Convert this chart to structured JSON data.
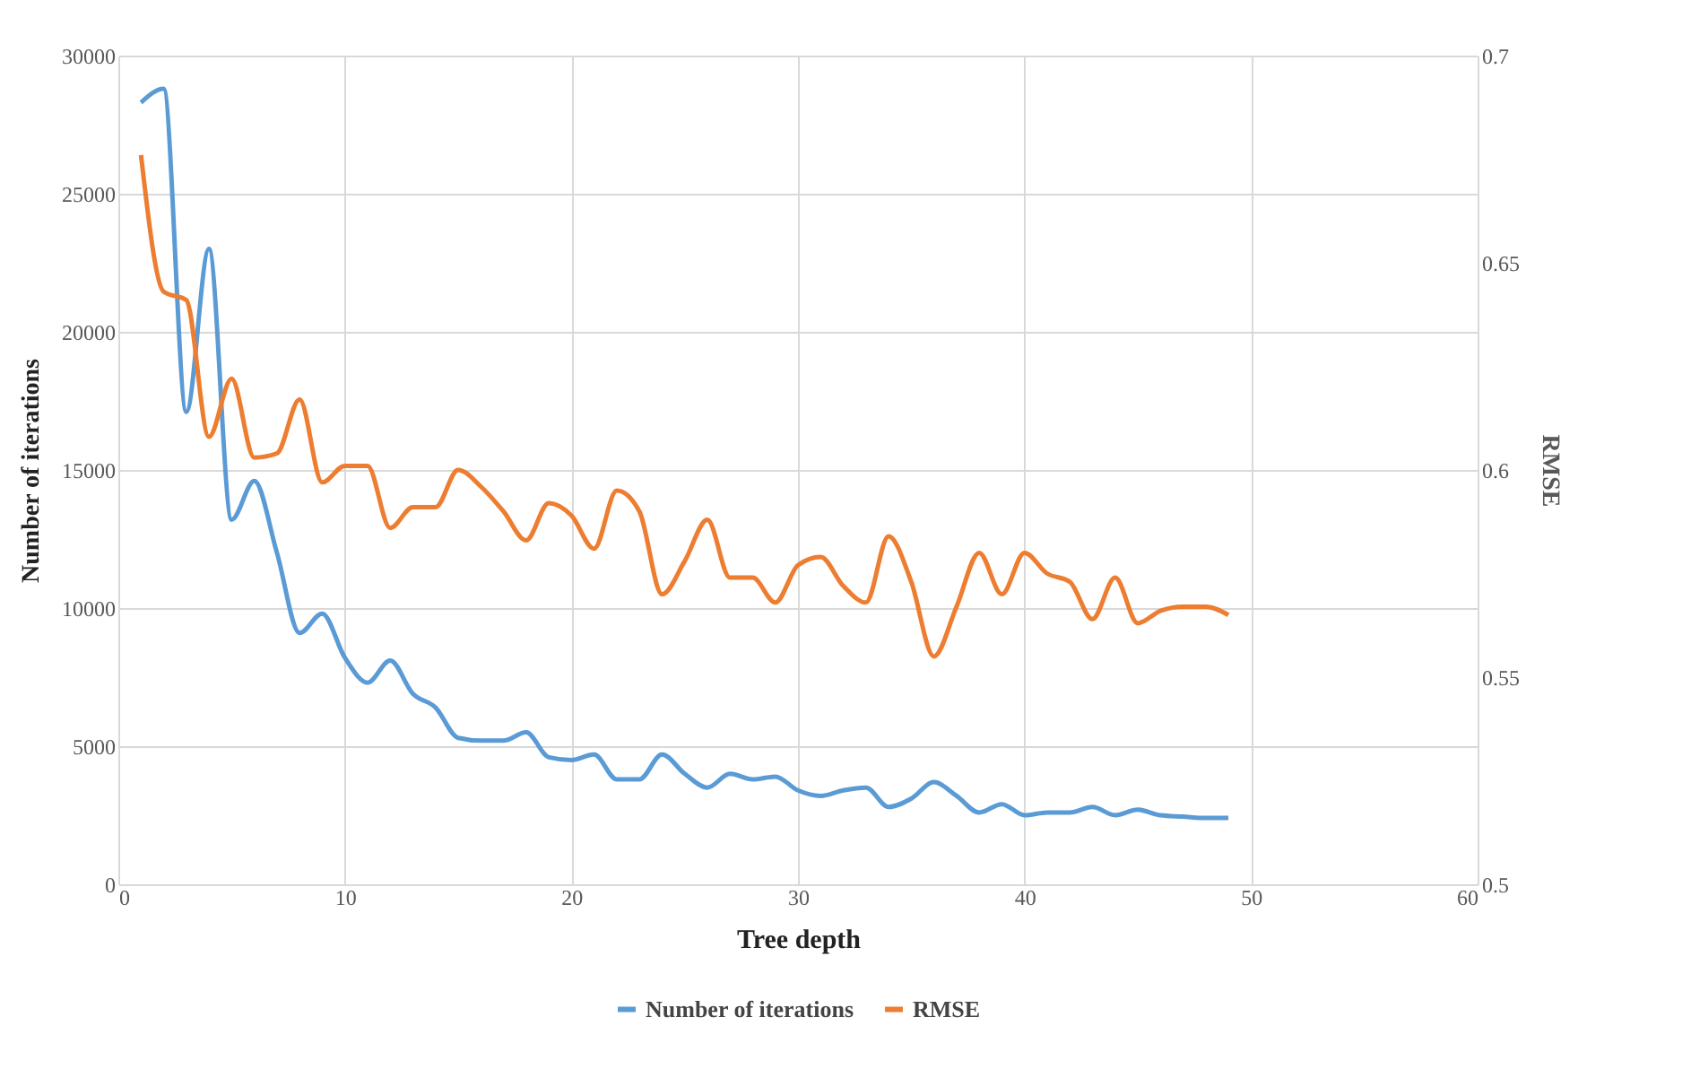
{
  "chart_data": {
    "type": "line",
    "xlabel": "Tree depth",
    "ylabel": "Number of iterations",
    "y2label": "RMSE",
    "x": [
      1,
      2,
      3,
      4,
      5,
      6,
      7,
      8,
      9,
      10,
      11,
      12,
      13,
      14,
      15,
      16,
      17,
      18,
      19,
      20,
      21,
      22,
      23,
      24,
      25,
      26,
      27,
      28,
      29,
      30,
      31,
      32,
      33,
      34,
      35,
      36,
      37,
      38,
      39,
      40,
      41,
      42,
      43,
      44,
      45,
      46,
      47,
      48,
      49
    ],
    "series": [
      {
        "name": "Number of iterations",
        "color": "#5b9bd5",
        "values": [
          28300,
          28800,
          17100,
          23000,
          13200,
          14600,
          12000,
          9100,
          9800,
          8200,
          7300,
          8100,
          6900,
          6400,
          5300,
          5200,
          5200,
          5500,
          4600,
          4500,
          4700,
          3800,
          3800,
          4700,
          4000,
          3500,
          4000,
          3800,
          3900,
          3400,
          3200,
          3400,
          3500,
          2800,
          3100,
          3700,
          3200,
          2600,
          2900,
          2500,
          2600,
          2600,
          2800,
          2500,
          2700,
          2500,
          2450,
          2400,
          2400
        ]
      },
      {
        "name": "RMSE",
        "color": "#ed7d31",
        "axis": "y2",
        "values": [
          0.676,
          0.643,
          0.641,
          0.608,
          0.622,
          0.603,
          0.604,
          0.617,
          0.597,
          0.601,
          0.601,
          0.586,
          0.591,
          0.591,
          0.6,
          0.596,
          0.59,
          0.583,
          0.592,
          0.589,
          0.581,
          0.595,
          0.59,
          0.57,
          0.578,
          0.588,
          0.574,
          0.574,
          0.568,
          0.577,
          0.579,
          0.572,
          0.568,
          0.584,
          0.573,
          0.555,
          0.567,
          0.58,
          0.57,
          0.58,
          0.575,
          0.573,
          0.564,
          0.574,
          0.563,
          0.566,
          0.567,
          0.567,
          0.565
        ]
      }
    ],
    "xlim": [
      0,
      60
    ],
    "xticks": [
      0,
      10,
      20,
      30,
      40,
      50,
      60
    ],
    "ylim": [
      0,
      30000
    ],
    "yticks": [
      0,
      5000,
      10000,
      15000,
      20000,
      25000,
      30000
    ],
    "y2lim": [
      0.5,
      0.7
    ],
    "y2ticks": [
      0.5,
      0.55,
      0.6,
      0.65,
      0.7
    ],
    "grid": true,
    "legend": "bottom",
    "marker": "none",
    "line_style": "solid"
  }
}
